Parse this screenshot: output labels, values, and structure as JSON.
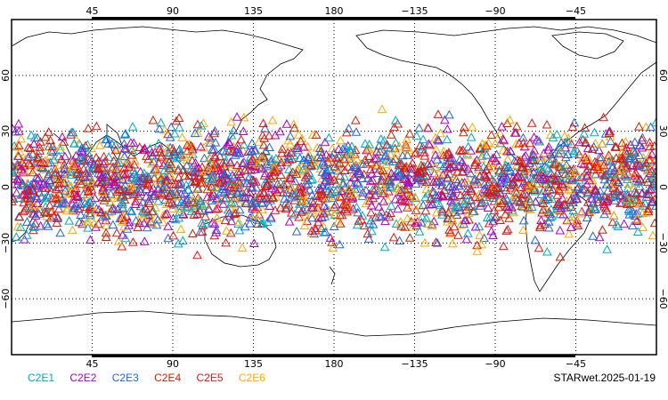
{
  "map": {
    "top_lon_labels": [
      "45",
      "90",
      "135",
      "180",
      "−135",
      "−90",
      "−45"
    ],
    "bottom_lon_labels": [
      "45",
      "90",
      "135",
      "180",
      "−135",
      "−90",
      "−45"
    ],
    "left_lat_labels": [
      "60",
      "30",
      "0",
      "−30",
      "−60"
    ],
    "right_lat_labels": [
      "60",
      "30",
      "0",
      "−30",
      "−60"
    ],
    "lon_values": [
      45,
      90,
      135,
      180,
      -135,
      -90,
      -45
    ],
    "lat_values": [
      60,
      30,
      0,
      -30,
      -60
    ],
    "lon_range": [
      0,
      360
    ],
    "lat_range": [
      -90,
      90
    ],
    "grid": true,
    "observation_lat_band": [
      -40,
      45
    ],
    "marker_shape": "triangle-open"
  },
  "legend": {
    "items": [
      {
        "label": "C2E1",
        "color": "#00aacc"
      },
      {
        "label": "C2E2",
        "color": "#aa00cc"
      },
      {
        "label": "C2E3",
        "color": "#2266dd"
      },
      {
        "label": "C2E4",
        "color": "#cc2200"
      },
      {
        "label": "C2E5",
        "color": "#ee1111"
      },
      {
        "label": "C2E6",
        "color": "#ffaa00"
      }
    ]
  },
  "footer": {
    "stamp": "STARwet.2025-01-19"
  }
}
